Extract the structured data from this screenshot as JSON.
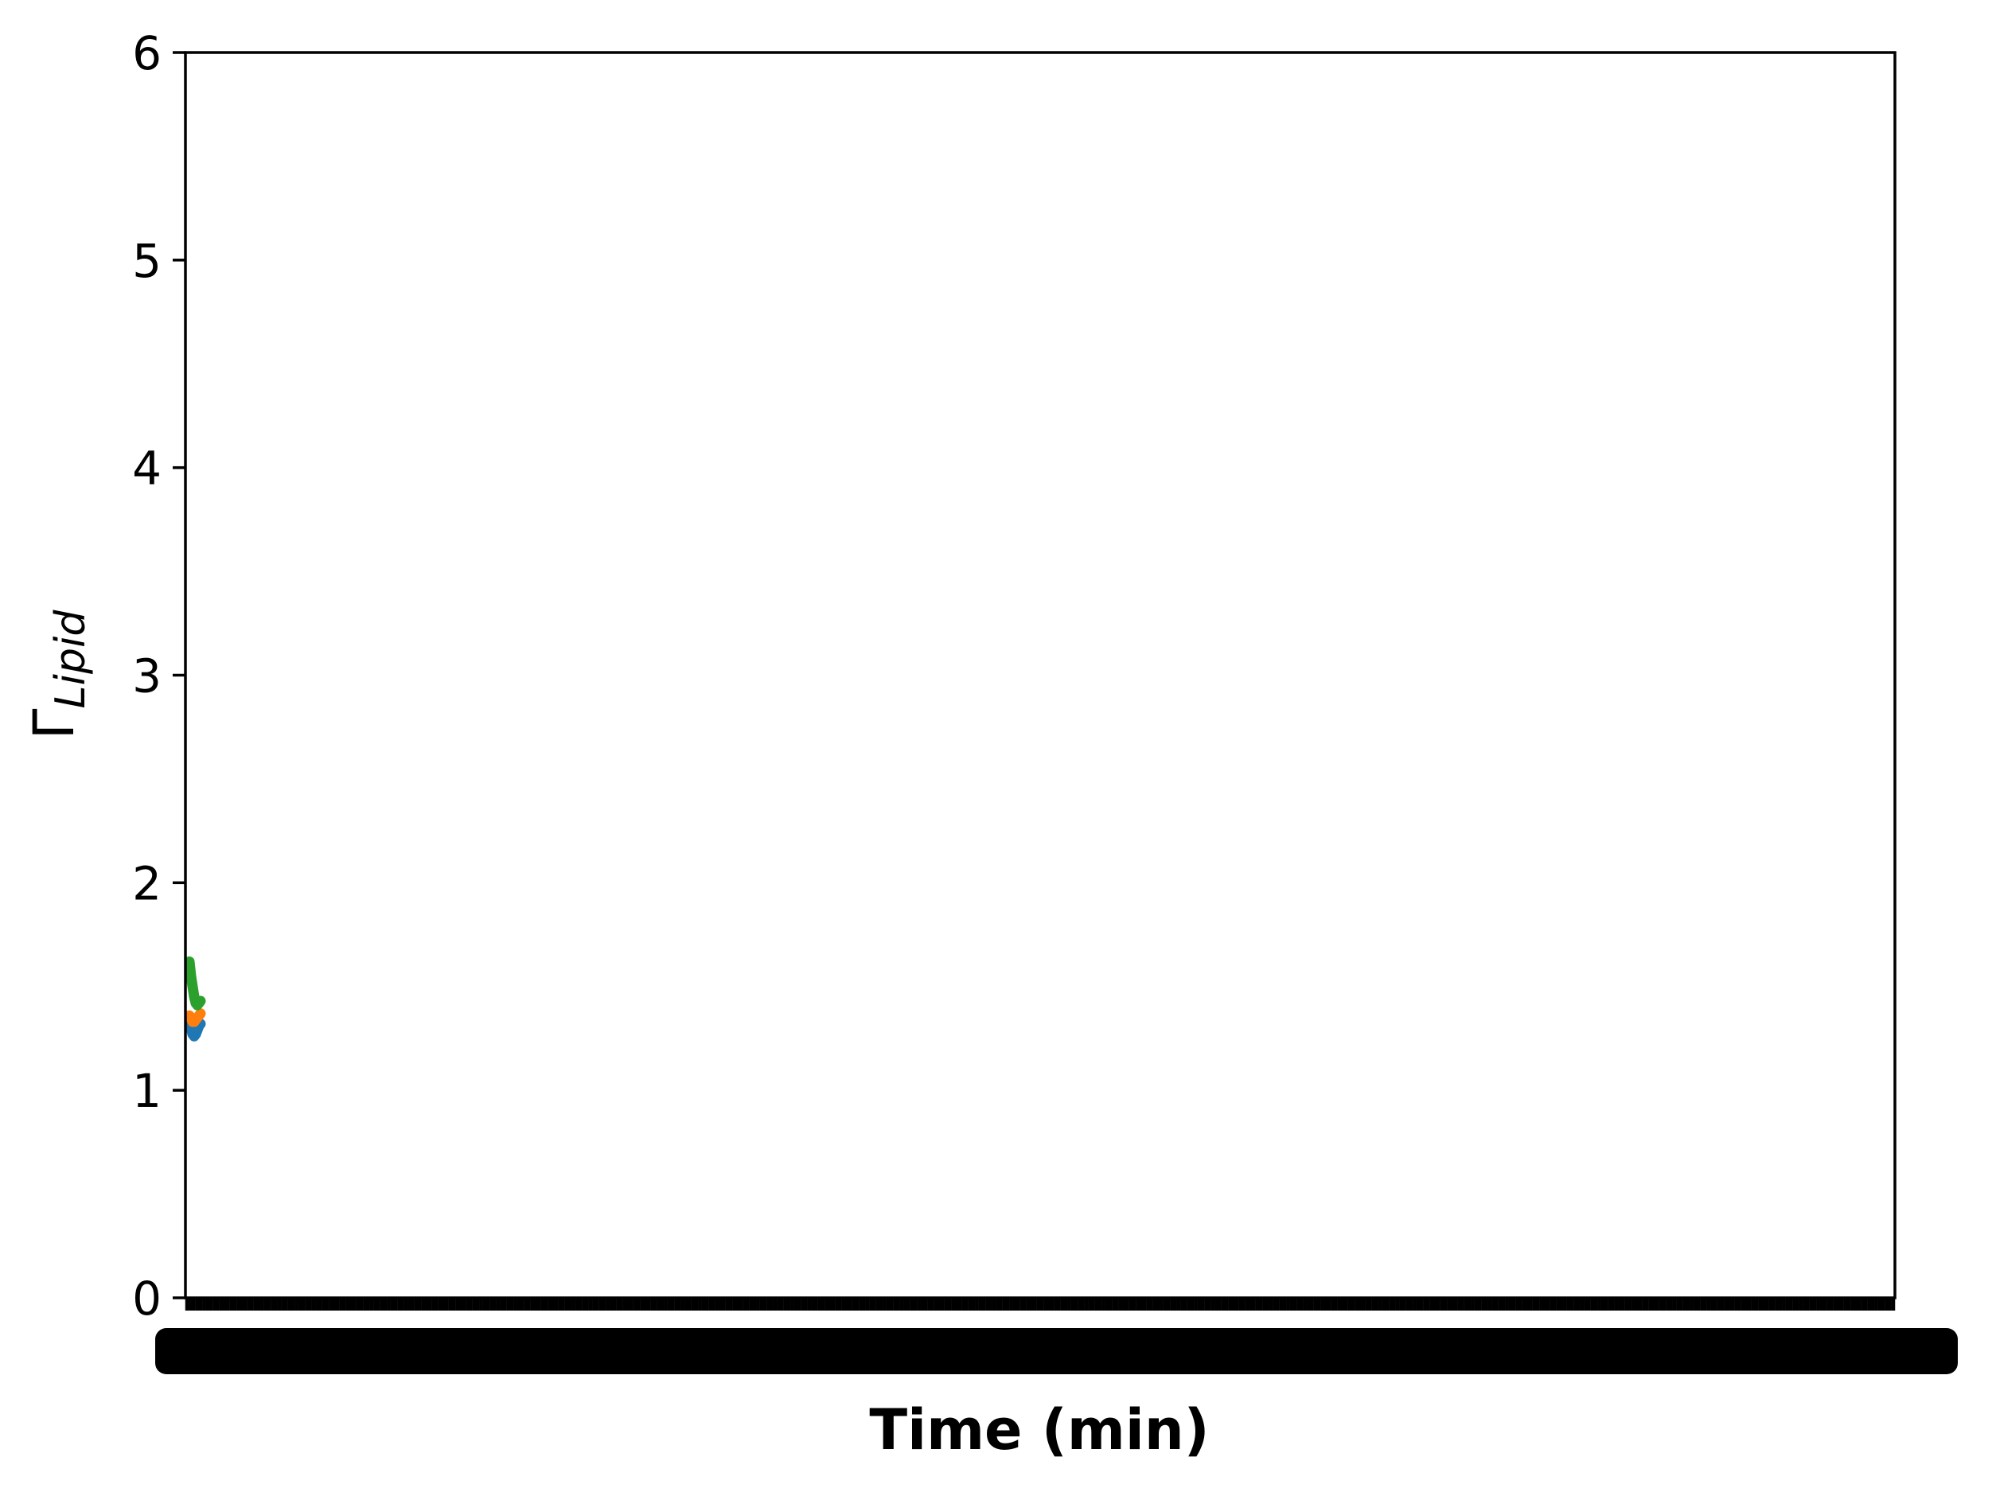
{
  "chart_data": {
    "type": "line",
    "xlabel": "Time (min)",
    "ylabel": {
      "symbol": "Γ",
      "subscript": "Lipid"
    },
    "ylim": [
      0,
      6
    ],
    "yticks": [
      "0",
      "1",
      "2",
      "3",
      "4",
      "5",
      "6"
    ],
    "xticks_note": "x tick labels heavily overlapped and illegible",
    "grid": false,
    "legend": "none",
    "series": [
      {
        "color": "#1f77b4",
        "x": [
          0,
          1,
          2,
          3,
          4,
          5,
          6,
          7
        ],
        "y": [
          1.32,
          1.3,
          1.27,
          1.26,
          1.27,
          1.29,
          1.31,
          1.32
        ]
      },
      {
        "color": "#ff7f0e",
        "x": [
          0,
          1,
          2,
          3,
          4,
          5,
          6,
          7
        ],
        "y": [
          1.36,
          1.35,
          1.33,
          1.33,
          1.34,
          1.35,
          1.36,
          1.37
        ]
      },
      {
        "color": "#2ca02c",
        "x": [
          0,
          1,
          2,
          3,
          4,
          5,
          6,
          7
        ],
        "y": [
          1.62,
          1.55,
          1.5,
          1.45,
          1.42,
          1.41,
          1.42,
          1.43
        ]
      }
    ]
  }
}
